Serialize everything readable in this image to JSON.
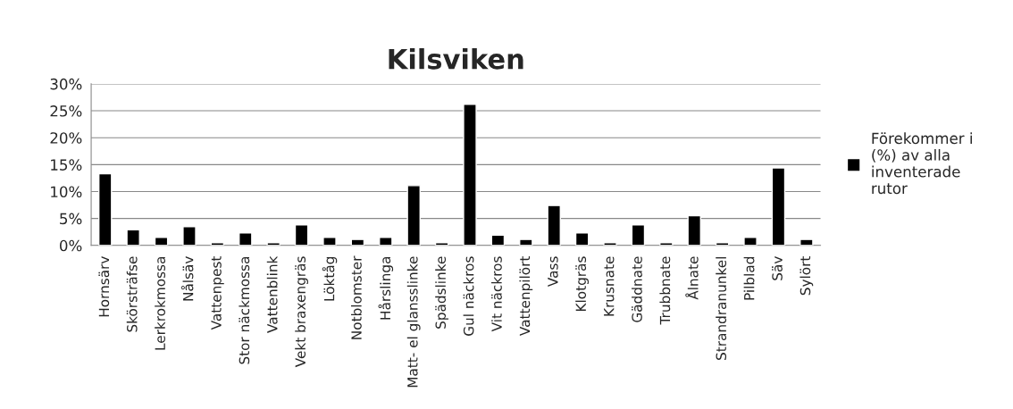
{
  "chart_data": {
    "type": "bar",
    "title": "Kilsviken",
    "categories": [
      "Hornsärv",
      "Skörsträfse",
      "Lerkrokmossa",
      "Nålsäv",
      "Vattenpest",
      "Stor näckmossa",
      "Vattenblink",
      "Vekt braxengräs",
      "Löktåg",
      "Notblomster",
      "Hårslinga",
      "Matt- el glansslinke",
      "Spädslinke",
      "Gul näckros",
      "Vit näckros",
      "Vattenpilört",
      "Vass",
      "Klotgräs",
      "Krusnate",
      "Gäddnate",
      "Trubbnate",
      "Ålnate",
      "Strandranunkel",
      "Pilblad",
      "Säv",
      "Sylört"
    ],
    "series": [
      {
        "name": "Förekommer i\n(%) av alla\ninventerade\nrutor",
        "color": "#000000",
        "values": [
          13.3,
          2.9,
          1.5,
          3.5,
          0.5,
          2.3,
          0.5,
          3.8,
          1.5,
          1.1,
          1.5,
          11.1,
          0.5,
          26.2,
          1.9,
          1.1,
          7.4,
          2.3,
          0.5,
          3.8,
          0.5,
          5.5,
          0.5,
          1.5,
          14.4,
          1.1
        ]
      }
    ],
    "ylim": [
      0,
      30
    ],
    "yticks": [
      {
        "value": 0,
        "label": "0%"
      },
      {
        "value": 5,
        "label": "5%"
      },
      {
        "value": 10,
        "label": "10%"
      },
      {
        "value": 15,
        "label": "15%"
      },
      {
        "value": 20,
        "label": "20%"
      },
      {
        "value": 25,
        "label": "25%"
      },
      {
        "value": 30,
        "label": "30%"
      }
    ],
    "grid": "y",
    "legend": "right"
  }
}
